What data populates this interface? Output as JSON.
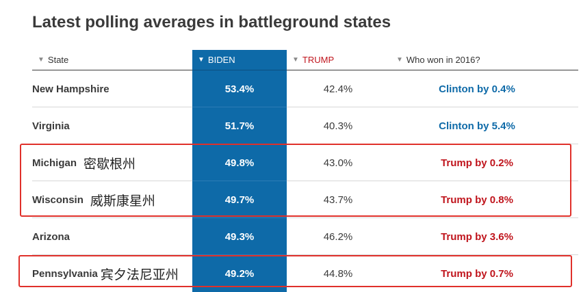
{
  "title": "Latest polling averages in battleground states",
  "columns": {
    "state": "State",
    "biden": "BIDEN",
    "trump": "TRUMP",
    "won2016": "Who won in 2016?"
  },
  "rows": [
    {
      "state": "New Hampshire",
      "cn": "",
      "biden": "53.4%",
      "trump": "42.4%",
      "won": "Clinton by 0.4%"
    },
    {
      "state": "Virginia",
      "cn": "",
      "biden": "51.7%",
      "trump": "40.3%",
      "won": "Clinton by 5.4%"
    },
    {
      "state": "Michigan",
      "cn": "密歇根州",
      "biden": "49.8%",
      "trump": "43.0%",
      "won": "Trump by 0.2%"
    },
    {
      "state": "Wisconsin",
      "cn": "威斯康星州",
      "biden": "49.7%",
      "trump": "43.7%",
      "won": "Trump by 0.8%"
    },
    {
      "state": "Arizona",
      "cn": "",
      "biden": "49.3%",
      "trump": "46.2%",
      "won": "Trump by 3.6%"
    },
    {
      "state": "Pennsylvania",
      "cn": "宾夕法尼亚州",
      "biden": "49.2%",
      "trump": "44.8%",
      "won": "Trump by 0.7%"
    }
  ],
  "colors": {
    "biden": "#0e6aa8",
    "trump": "#c0151d",
    "highlight": "#e0302a"
  },
  "icons": {
    "sort": "triangle-down-icon"
  }
}
